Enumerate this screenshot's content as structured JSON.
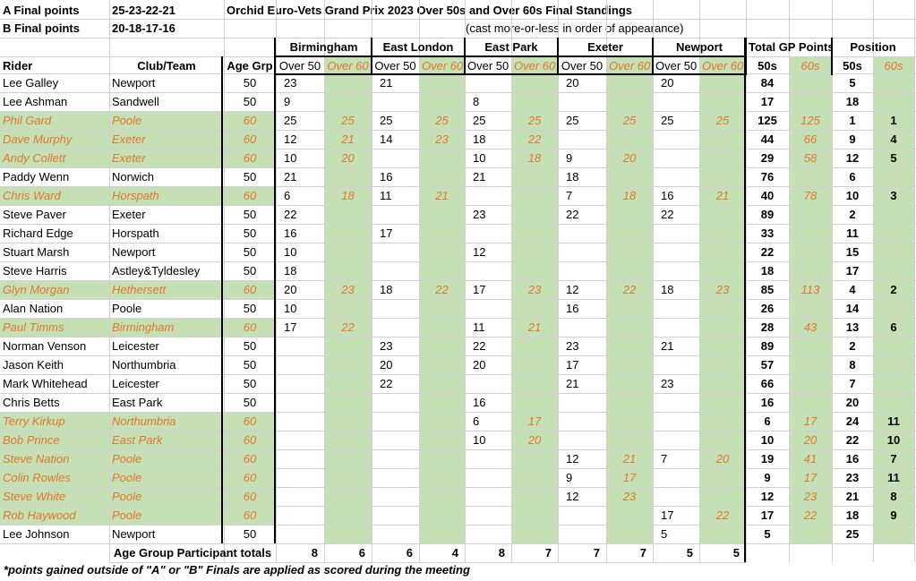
{
  "header": {
    "a_final_label": "A Final points",
    "a_final_values": "25-23-22-21",
    "b_final_label": "B Final points",
    "b_final_values": "20-18-17-16",
    "title": "Orchid Euro-Vets Grand Prix 2023 Over 50s and Over 60s Final Standings",
    "subtitle": "(cast more-or-less in order of appearance)"
  },
  "columns": {
    "rider": "Rider",
    "club": "Club/Team",
    "age_grp": "Age Grp",
    "venues": [
      "Birmingham",
      "East London",
      "East Park",
      "Exeter",
      "Newport"
    ],
    "over50": "Over 50",
    "over60": "Over 60",
    "total_gp": "Total GP Points",
    "position": "Position",
    "s50": "50s",
    "s60": "60s"
  },
  "rows": [
    {
      "rider": "Lee Galley",
      "club": "Newport",
      "age": "50",
      "o60": false,
      "pts": [
        "23",
        "",
        "21",
        "",
        "",
        "",
        "20",
        "",
        "20",
        ""
      ],
      "t50": "84",
      "t60": "",
      "p50": "5",
      "p60": ""
    },
    {
      "rider": "Lee Ashman",
      "club": "Sandwell",
      "age": "50",
      "o60": false,
      "pts": [
        "9",
        "",
        "",
        "",
        "8",
        "",
        "",
        "",
        "",
        ""
      ],
      "t50": "17",
      "t60": "",
      "p50": "18",
      "p60": ""
    },
    {
      "rider": "Phil Gard",
      "club": "Poole",
      "age": "60",
      "o60": true,
      "pts": [
        "25",
        "25",
        "25",
        "25",
        "25",
        "25",
        "25",
        "25",
        "25",
        "25"
      ],
      "t50": "125",
      "t60": "125",
      "p50": "1",
      "p60": "1"
    },
    {
      "rider": "Dave Murphy",
      "club": "Exeter",
      "age": "60",
      "o60": true,
      "pts": [
        "12",
        "21",
        "14",
        "23",
        "18",
        "22",
        "",
        "",
        "",
        ""
      ],
      "t50": "44",
      "t60": "66",
      "p50": "9",
      "p60": "4"
    },
    {
      "rider": "Andy Collett",
      "club": "Exeter",
      "age": "60",
      "o60": true,
      "pts": [
        "10",
        "20",
        "",
        "",
        "10",
        "18",
        "9",
        "20",
        "",
        ""
      ],
      "t50": "29",
      "t60": "58",
      "p50": "12",
      "p60": "5"
    },
    {
      "rider": "Paddy Wenn",
      "club": "Norwich",
      "age": "50",
      "o60": false,
      "pts": [
        "21",
        "",
        "16",
        "",
        "21",
        "",
        "18",
        "",
        "",
        ""
      ],
      "t50": "76",
      "t60": "",
      "p50": "6",
      "p60": ""
    },
    {
      "rider": "Chris Ward",
      "club": "Horspath",
      "age": "60",
      "o60": true,
      "pts": [
        "6",
        "18",
        "11",
        "21",
        "",
        "",
        "7",
        "18",
        "16",
        "21"
      ],
      "t50": "40",
      "t60": "78",
      "p50": "10",
      "p60": "3"
    },
    {
      "rider": "Steve Paver",
      "club": "Exeter",
      "age": "50",
      "o60": false,
      "pts": [
        "22",
        "",
        "",
        "",
        "23",
        "",
        "22",
        "",
        "22",
        ""
      ],
      "t50": "89",
      "t60": "",
      "p50": "2",
      "p60": ""
    },
    {
      "rider": "Richard Edge",
      "club": "Horspath",
      "age": "50",
      "o60": false,
      "pts": [
        "16",
        "",
        "17",
        "",
        "",
        "",
        "",
        "",
        "",
        ""
      ],
      "t50": "33",
      "t60": "",
      "p50": "11",
      "p60": ""
    },
    {
      "rider": "Stuart Marsh",
      "club": "Newport",
      "age": "50",
      "o60": false,
      "pts": [
        "10",
        "",
        "",
        "",
        "12",
        "",
        "",
        "",
        "",
        ""
      ],
      "t50": "22",
      "t60": "",
      "p50": "15",
      "p60": ""
    },
    {
      "rider": "Steve Harris",
      "club": "Astley&Tyldesley",
      "age": "50",
      "o60": false,
      "pts": [
        "18",
        "",
        "",
        "",
        "",
        "",
        "",
        "",
        "",
        ""
      ],
      "t50": "18",
      "t60": "",
      "p50": "17",
      "p60": ""
    },
    {
      "rider": "Glyn Morgan",
      "club": "Hethersett",
      "age": "60",
      "o60": true,
      "pts": [
        "20",
        "23",
        "18",
        "22",
        "17",
        "23",
        "12",
        "22",
        "18",
        "23"
      ],
      "t50": "85",
      "t60": "113",
      "p50": "4",
      "p60": "2"
    },
    {
      "rider": "Alan Nation",
      "club": "Poole",
      "age": "50",
      "o60": false,
      "pts": [
        "10",
        "",
        "",
        "",
        "",
        "",
        "16",
        "",
        "",
        ""
      ],
      "t50": "26",
      "t60": "",
      "p50": "14",
      "p60": ""
    },
    {
      "rider": "Paul Timms",
      "club": "Birmingham",
      "age": "60",
      "o60": true,
      "pts": [
        "17",
        "22",
        "",
        "",
        "11",
        "21",
        "",
        "",
        "",
        ""
      ],
      "t50": "28",
      "t60": "43",
      "p50": "13",
      "p60": "6"
    },
    {
      "rider": "Norman Venson",
      "club": "Leicester",
      "age": "50",
      "o60": false,
      "pts": [
        "",
        "",
        "23",
        "",
        "22",
        "",
        "23",
        "",
        "21",
        ""
      ],
      "t50": "89",
      "t60": "",
      "p50": "2",
      "p60": ""
    },
    {
      "rider": "Jason Keith",
      "club": "Northumbria",
      "age": "50",
      "o60": false,
      "pts": [
        "",
        "",
        "20",
        "",
        "20",
        "",
        "17",
        "",
        "",
        ""
      ],
      "t50": "57",
      "t60": "",
      "p50": "8",
      "p60": ""
    },
    {
      "rider": "Mark Whitehead",
      "club": "Leicester",
      "age": "50",
      "o60": false,
      "pts": [
        "",
        "",
        "22",
        "",
        "",
        "",
        "21",
        "",
        "23",
        ""
      ],
      "t50": "66",
      "t60": "",
      "p50": "7",
      "p60": ""
    },
    {
      "rider": "Chris Betts",
      "club": "East Park",
      "age": "50",
      "o60": false,
      "pts": [
        "",
        "",
        "",
        "",
        "16",
        "",
        "",
        "",
        "",
        ""
      ],
      "t50": "16",
      "t60": "",
      "p50": "20",
      "p60": ""
    },
    {
      "rider": "Terry Kirkup",
      "club": "Northumbria",
      "age": "60",
      "o60": true,
      "pts": [
        "",
        "",
        "",
        "",
        "6",
        "17",
        "",
        "",
        "",
        ""
      ],
      "t50": "6",
      "t60": "17",
      "p50": "24",
      "p60": "11"
    },
    {
      "rider": "Bob Prince",
      "club": "East Park",
      "age": "60",
      "o60": true,
      "pts": [
        "",
        "",
        "",
        "",
        "10",
        "20",
        "",
        "",
        "",
        ""
      ],
      "t50": "10",
      "t60": "20",
      "p50": "22",
      "p60": "10"
    },
    {
      "rider": "Steve Nation",
      "club": "Poole",
      "age": "60",
      "o60": true,
      "pts": [
        "",
        "",
        "",
        "",
        "",
        "",
        "12",
        "21",
        "7",
        "20"
      ],
      "t50": "19",
      "t60": "41",
      "p50": "16",
      "p60": "7"
    },
    {
      "rider": "Colin Rowles",
      "club": "Poole",
      "age": "60",
      "o60": true,
      "pts": [
        "",
        "",
        "",
        "",
        "",
        "",
        "9",
        "17",
        "",
        ""
      ],
      "t50": "9",
      "t60": "17",
      "p50": "23",
      "p60": "11"
    },
    {
      "rider": "Steve White",
      "club": "Poole",
      "age": "60",
      "o60": true,
      "pts": [
        "",
        "",
        "",
        "",
        "",
        "",
        "12",
        "23",
        "",
        ""
      ],
      "t50": "12",
      "t60": "23",
      "p50": "21",
      "p60": "8"
    },
    {
      "rider": "Rob Haywood",
      "club": "Poole",
      "age": "60",
      "o60": true,
      "pts": [
        "",
        "",
        "",
        "",
        "",
        "",
        "",
        "",
        "17",
        "22"
      ],
      "t50": "17",
      "t60": "22",
      "p50": "18",
      "p60": "9"
    },
    {
      "rider": "Lee Johnson",
      "club": "Newport",
      "age": "50",
      "o60": false,
      "pts": [
        "",
        "",
        "",
        "",
        "",
        "",
        "",
        "",
        "5",
        ""
      ],
      "t50": "5",
      "t60": "",
      "p50": "25",
      "p60": ""
    }
  ],
  "totals": {
    "label": "Age Group Participant totals",
    "values": [
      "8",
      "6",
      "6",
      "4",
      "8",
      "7",
      "7",
      "7",
      "5",
      "5"
    ]
  },
  "footnote": "*points gained outside of \"A\" or \"B\" Finals are applied as scored during the meeting",
  "colors": {
    "green": "#C5E0B4",
    "orange": "#E2762B"
  }
}
